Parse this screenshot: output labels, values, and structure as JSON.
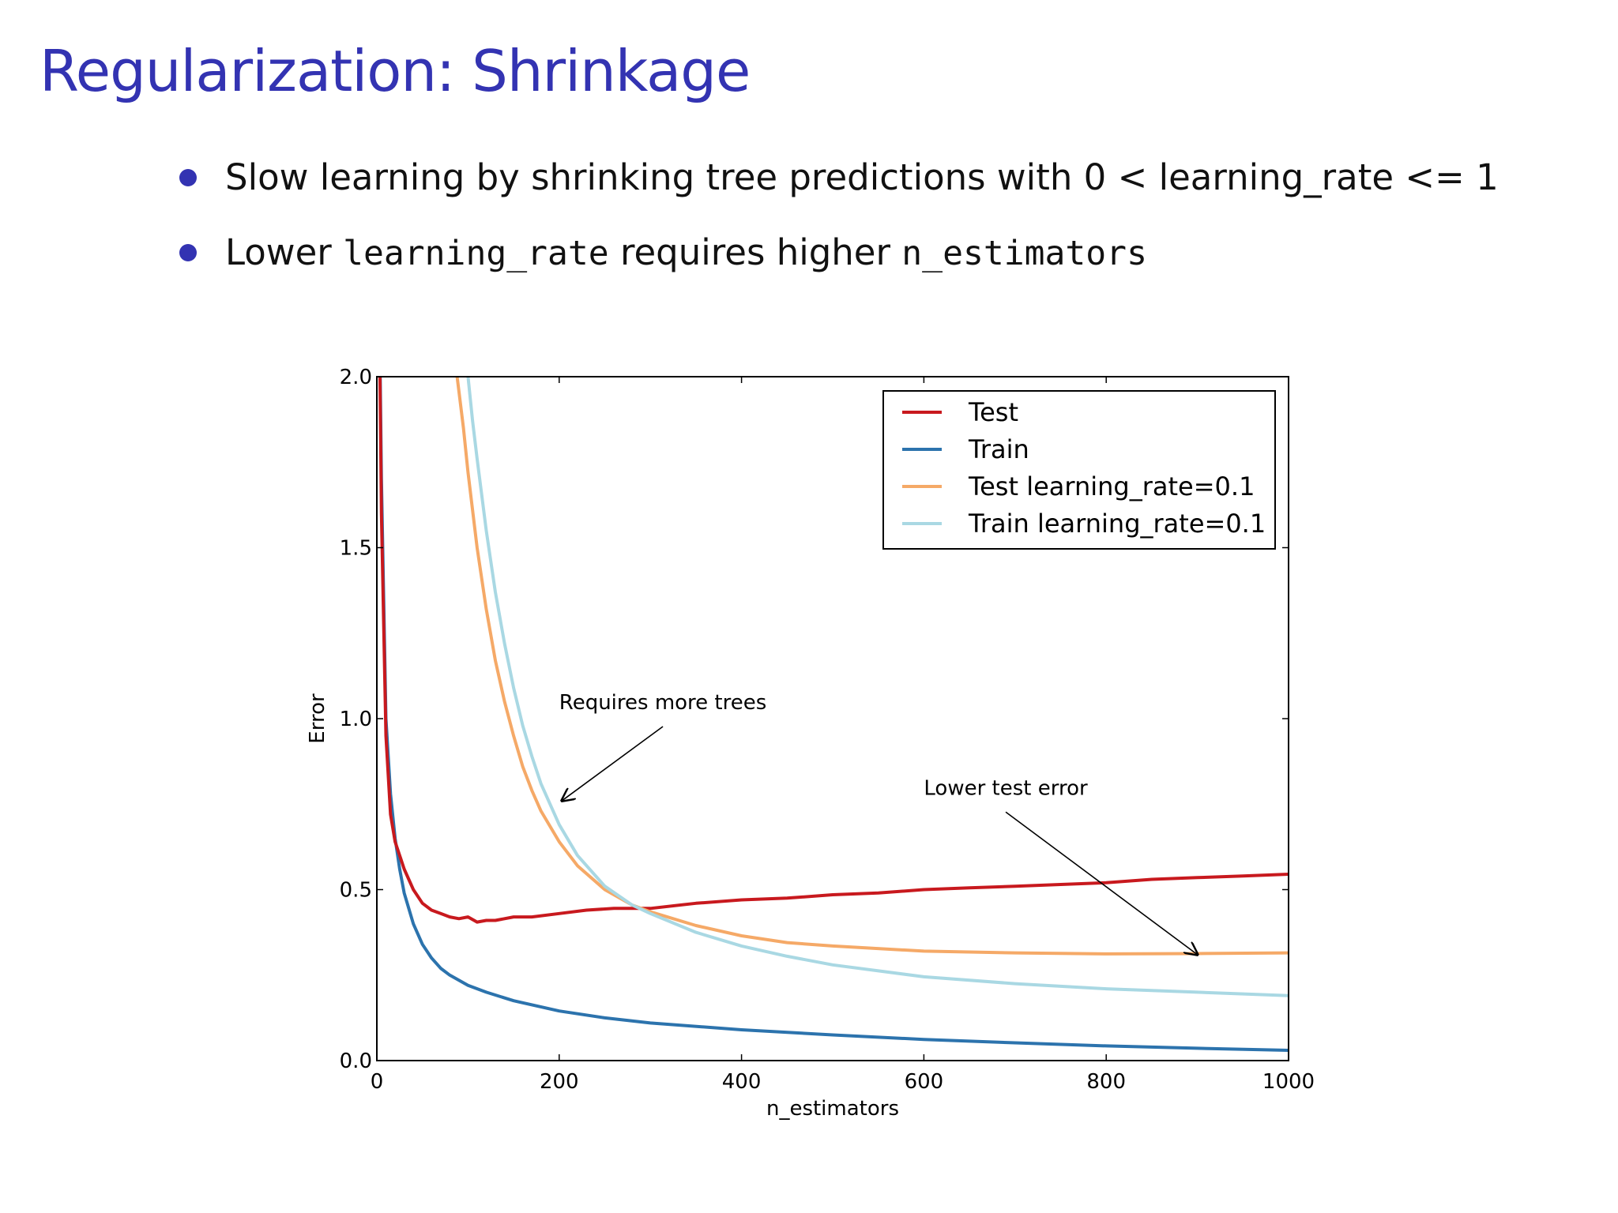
{
  "slide": {
    "title": "Regularization: Shrinkage",
    "bullets": [
      {
        "parts": [
          "Slow learning by shrinking tree predictions with 0 < learning_rate <= 1"
        ]
      },
      {
        "parts": [
          "Lower ",
          "learning_rate",
          " requires higher ",
          "n_estimators"
        ]
      }
    ]
  },
  "chart_data": {
    "type": "line",
    "title": "",
    "xlabel": "n_estimators",
    "ylabel": "Error",
    "xlim": [
      0,
      1000
    ],
    "ylim": [
      0,
      2.0
    ],
    "xticks": [
      "0",
      "200",
      "400",
      "600",
      "800",
      "1000"
    ],
    "yticks": [
      "0.0",
      "0.5",
      "1.0",
      "1.5",
      "2.0"
    ],
    "grid": false,
    "legend_position": "top-right",
    "series": [
      {
        "name": "Test",
        "color": "#c8191e",
        "x": [
          1,
          5,
          10,
          15,
          20,
          25,
          30,
          40,
          50,
          60,
          70,
          80,
          90,
          100,
          110,
          120,
          130,
          150,
          170,
          200,
          230,
          260,
          300,
          350,
          400,
          450,
          500,
          550,
          600,
          650,
          700,
          750,
          800,
          850,
          900,
          950,
          1000
        ],
        "y": [
          2.6,
          1.6,
          0.95,
          0.72,
          0.64,
          0.6,
          0.56,
          0.5,
          0.46,
          0.44,
          0.43,
          0.42,
          0.415,
          0.42,
          0.405,
          0.41,
          0.41,
          0.42,
          0.42,
          0.43,
          0.44,
          0.445,
          0.445,
          0.46,
          0.47,
          0.475,
          0.485,
          0.49,
          0.5,
          0.505,
          0.51,
          0.515,
          0.52,
          0.53,
          0.535,
          0.54,
          0.545
        ]
      },
      {
        "name": "Train",
        "color": "#2c73ad",
        "x": [
          1,
          5,
          10,
          15,
          20,
          25,
          30,
          40,
          50,
          60,
          70,
          80,
          100,
          120,
          150,
          200,
          250,
          300,
          400,
          500,
          600,
          700,
          800,
          900,
          1000
        ],
        "y": [
          2.6,
          1.7,
          1.0,
          0.78,
          0.65,
          0.56,
          0.49,
          0.4,
          0.34,
          0.3,
          0.27,
          0.25,
          0.22,
          0.2,
          0.175,
          0.145,
          0.125,
          0.11,
          0.09,
          0.075,
          0.062,
          0.052,
          0.043,
          0.036,
          0.03
        ]
      },
      {
        "name": "Test learning_rate=0.1",
        "color": "#f5a967",
        "x": [
          88,
          95,
          100,
          110,
          120,
          130,
          140,
          150,
          160,
          170,
          180,
          200,
          220,
          250,
          280,
          300,
          350,
          400,
          450,
          500,
          600,
          700,
          800,
          900,
          1000
        ],
        "y": [
          2.0,
          1.85,
          1.72,
          1.5,
          1.32,
          1.17,
          1.05,
          0.95,
          0.86,
          0.79,
          0.73,
          0.64,
          0.57,
          0.5,
          0.455,
          0.435,
          0.395,
          0.365,
          0.345,
          0.335,
          0.32,
          0.315,
          0.312,
          0.313,
          0.315
        ]
      },
      {
        "name": "Train learning_rate=0.1",
        "color": "#a9d8e3",
        "x": [
          100,
          105,
          110,
          120,
          130,
          140,
          150,
          160,
          170,
          180,
          200,
          220,
          250,
          280,
          300,
          350,
          400,
          450,
          500,
          600,
          700,
          800,
          900,
          1000
        ],
        "y": [
          2.0,
          1.87,
          1.76,
          1.55,
          1.37,
          1.22,
          1.09,
          0.98,
          0.89,
          0.81,
          0.69,
          0.6,
          0.51,
          0.455,
          0.43,
          0.375,
          0.335,
          0.305,
          0.28,
          0.245,
          0.225,
          0.21,
          0.2,
          0.19
        ]
      }
    ],
    "annotations": [
      {
        "text": "Requires more trees",
        "xy": [
          203,
          0.76
        ],
        "xytext": [
          200,
          1.0
        ]
      },
      {
        "text": "Lower test error",
        "xy": [
          900,
          0.31
        ],
        "xytext": [
          600,
          0.75
        ]
      }
    ]
  }
}
